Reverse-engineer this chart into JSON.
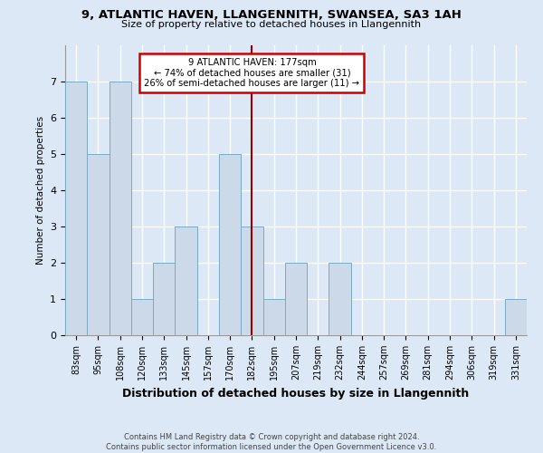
{
  "title1": "9, ATLANTIC HAVEN, LLANGENNITH, SWANSEA, SA3 1AH",
  "title2": "Size of property relative to detached houses in Llangennith",
  "xlabel": "Distribution of detached houses by size in Llangennith",
  "ylabel": "Number of detached properties",
  "categories": [
    "83sqm",
    "95sqm",
    "108sqm",
    "120sqm",
    "133sqm",
    "145sqm",
    "157sqm",
    "170sqm",
    "182sqm",
    "195sqm",
    "207sqm",
    "219sqm",
    "232sqm",
    "244sqm",
    "257sqm",
    "269sqm",
    "281sqm",
    "294sqm",
    "306sqm",
    "319sqm",
    "331sqm"
  ],
  "values": [
    7,
    5,
    7,
    1,
    2,
    3,
    0,
    5,
    3,
    1,
    2,
    0,
    2,
    0,
    0,
    0,
    0,
    0,
    0,
    0,
    1
  ],
  "bar_color": "#ccd9e8",
  "bar_edge_color": "#7aaac8",
  "property_size_index": 8,
  "vline_color": "#990000",
  "annotation_text": "9 ATLANTIC HAVEN: 177sqm\n← 74% of detached houses are smaller (31)\n26% of semi-detached houses are larger (11) →",
  "annotation_box_color": "#ffffff",
  "annotation_box_edge_color": "#cc0000",
  "footer_text": "Contains HM Land Registry data © Crown copyright and database right 2024.\nContains public sector information licensed under the Open Government Licence v3.0.",
  "ylim": [
    0,
    8
  ],
  "yticks": [
    0,
    1,
    2,
    3,
    4,
    5,
    6,
    7
  ],
  "bg_color": "#dce8f5",
  "grid_color": "#ffffff"
}
